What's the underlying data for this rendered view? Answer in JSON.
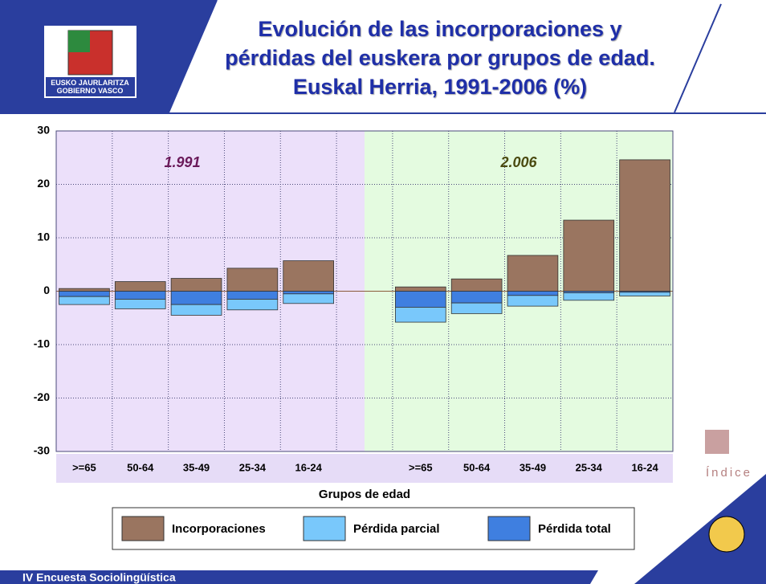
{
  "slide": {
    "logo_lines": [
      "EUSKO JAURLARITZA",
      "GOBIERNO VASCO"
    ],
    "index_label": "Índice",
    "footer": "IV Encuesta Sociolingüística"
  },
  "chart_data": {
    "type": "bar",
    "stacked": true,
    "title": "Evolución de las incorporaciones y pérdidas del euskera por grupos de edad. Euskal Herria, 1991-2006 (%)",
    "x_label": "Grupos de edad",
    "annotations": [
      "1.991",
      "2.006"
    ],
    "categories": [
      ">=65",
      "50-64",
      "35-49",
      "25-34",
      "16-24",
      null,
      ">=65",
      "50-64",
      "35-49",
      "25-34",
      "16-24"
    ],
    "series": [
      {
        "name": "Incorporaciones",
        "color": "#9a7560",
        "values": [
          0.5,
          1.8,
          2.4,
          4.3,
          5.7,
          null,
          0.8,
          2.3,
          6.7,
          13.3,
          24.6
        ]
      },
      {
        "name": "Pérdida total",
        "color": "#3f7fe0",
        "values": [
          -1.0,
          -1.5,
          -2.5,
          -1.5,
          -0.5,
          null,
          -3.0,
          -2.2,
          -0.8,
          -0.3,
          -0.2
        ]
      },
      {
        "name": "Pérdida parcial",
        "color": "#79c8fb",
        "values": [
          -1.5,
          -1.8,
          -2.0,
          -2.0,
          -1.8,
          null,
          -2.8,
          -2.0,
          -2.0,
          -1.4,
          -0.7
        ]
      }
    ],
    "legend_order": [
      0,
      2,
      1
    ],
    "ylim": [
      -30,
      30
    ],
    "yticks": [
      -30,
      -20,
      -10,
      0,
      10,
      20,
      30
    ],
    "grid": true
  }
}
